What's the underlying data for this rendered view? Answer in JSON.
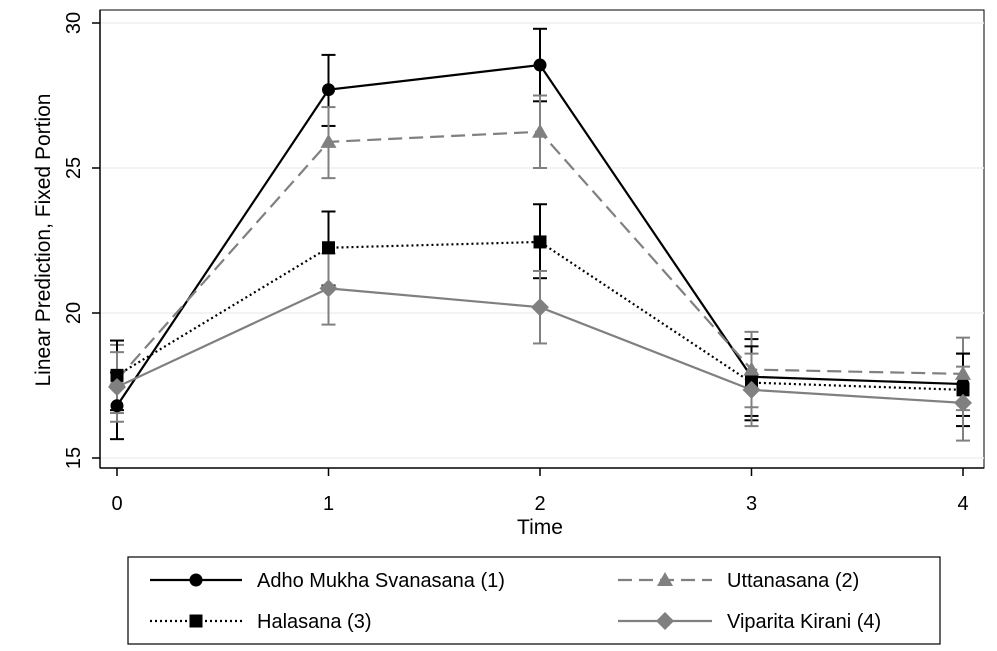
{
  "chart_data": {
    "type": "line",
    "title": "",
    "xlabel": "Time",
    "ylabel": "Linear Prediction, Fixed Portion",
    "x": [
      0,
      1,
      2,
      3,
      4
    ],
    "x_ticks": [
      "0",
      "1",
      "2",
      "3",
      "4"
    ],
    "y_ticks": [
      "15",
      "20",
      "25",
      "30"
    ],
    "ylim": [
      15,
      30
    ],
    "xlim": [
      0,
      4
    ],
    "grid": true,
    "legend_position": "bottom",
    "series": [
      {
        "name": "Adho Mukha Svanasana (1)",
        "values": [
          16.8,
          27.7,
          28.55,
          17.8,
          17.55
        ],
        "ci_low": [
          15.65,
          26.45,
          27.3,
          16.45,
          16.45
        ],
        "ci_high": [
          17.95,
          28.9,
          29.8,
          19.1,
          18.6
        ],
        "color": "#000000",
        "dash": "solid",
        "marker": "circle"
      },
      {
        "name": "Uttanasana (2)",
        "values": [
          17.7,
          25.9,
          26.25,
          18.05,
          17.9
        ],
        "ci_low": [
          16.55,
          24.65,
          25.0,
          16.75,
          16.65
        ],
        "ci_high": [
          18.9,
          27.1,
          27.5,
          19.35,
          19.15
        ],
        "color": "#808080",
        "dash": "dashed",
        "marker": "triangle"
      },
      {
        "name": "Halasana (3)",
        "values": [
          17.85,
          22.25,
          22.45,
          17.6,
          17.35
        ],
        "ci_low": [
          16.65,
          20.95,
          21.2,
          16.3,
          16.1
        ],
        "ci_high": [
          19.05,
          23.5,
          23.75,
          18.85,
          18.6
        ],
        "color": "#000000",
        "dash": "dotted",
        "marker": "square"
      },
      {
        "name": "Viparita Kirani (4)",
        "values": [
          17.45,
          20.85,
          20.2,
          17.35,
          16.9
        ],
        "ci_low": [
          16.25,
          19.6,
          18.95,
          16.1,
          15.6
        ],
        "ci_high": [
          18.65,
          22.05,
          21.45,
          18.6,
          18.15
        ],
        "color": "#808080",
        "dash": "solid",
        "marker": "diamond"
      }
    ]
  }
}
